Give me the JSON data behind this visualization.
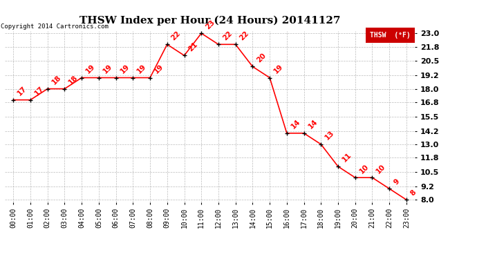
{
  "title": "THSW Index per Hour (24 Hours) 20141127",
  "copyright": "Copyright 2014 Cartronics.com",
  "legend_label": "THSW  (°F)",
  "hours": [
    "00:00",
    "01:00",
    "02:00",
    "03:00",
    "04:00",
    "05:00",
    "06:00",
    "07:00",
    "08:00",
    "09:00",
    "10:00",
    "11:00",
    "12:00",
    "13:00",
    "14:00",
    "15:00",
    "16:00",
    "17:00",
    "18:00",
    "19:00",
    "20:00",
    "21:00",
    "22:00",
    "23:00"
  ],
  "values": [
    17,
    17,
    18,
    18,
    19,
    19,
    19,
    19,
    19,
    22,
    21,
    23,
    22,
    22,
    20,
    19,
    14,
    14,
    13,
    11,
    10,
    10,
    9,
    8
  ],
  "ylim": [
    7.8,
    23.2
  ],
  "yticks": [
    8.0,
    9.2,
    10.5,
    11.8,
    13.0,
    14.2,
    15.5,
    16.8,
    18.0,
    19.2,
    20.5,
    21.8,
    23.0
  ],
  "line_color": "red",
  "marker_color": "black",
  "bg_color": "#ffffff",
  "grid_color": "#aaaaaa",
  "title_fontsize": 11,
  "label_fontsize": 7,
  "annot_fontsize": 7.5,
  "tick_fontsize": 8,
  "legend_bg": "#cc0000",
  "legend_fg": "#ffffff"
}
